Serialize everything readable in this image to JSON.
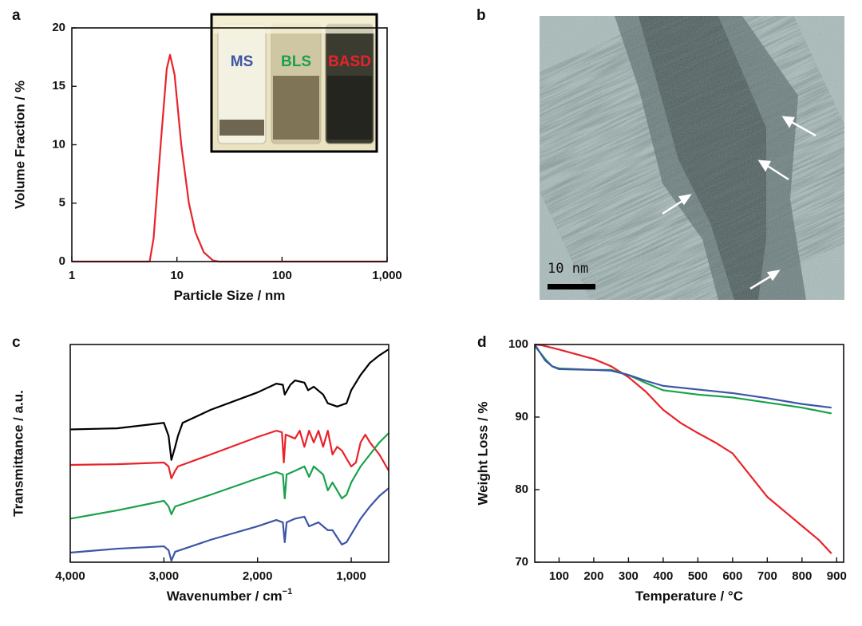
{
  "chart_data": [
    {
      "type": "line",
      "label": "a",
      "xlabel": "Particle Size / nm",
      "ylabel": "Volume Fraction / %",
      "xscale": "log",
      "xlim": [
        1,
        1000
      ],
      "xticks": [
        1,
        10,
        100,
        {
          "value": 1000,
          "label": "1,000"
        }
      ],
      "ylim": [
        0,
        20
      ],
      "yticks": [
        0,
        5,
        10,
        15,
        20
      ],
      "inset_labels": [
        "MS",
        "BLS",
        "BASD"
      ],
      "series": [
        {
          "color": "#e8232a",
          "x": [
            1,
            5.5,
            6,
            7,
            8,
            8.6,
            9.5,
            11,
            13,
            15,
            18,
            22,
            25,
            1000
          ],
          "values": [
            0,
            0,
            2,
            10,
            16.5,
            17.7,
            16,
            10,
            5,
            2.5,
            0.8,
            0.1,
            0,
            0
          ]
        }
      ]
    },
    {
      "type": "image",
      "label": "b",
      "scale_bar": "10 nm"
    },
    {
      "type": "line",
      "label": "c",
      "xlabel": "Wavenumber / cm",
      "xlabel_superscript": "−1",
      "ylabel": "Transmittance / a.u.",
      "xlim": [
        4000,
        600
      ],
      "xticks": [
        {
          "value": 4000,
          "label": "4,000"
        },
        {
          "value": 3000,
          "label": "3,000"
        },
        {
          "value": 2000,
          "label": "2,000"
        },
        {
          "value": 1000,
          "label": "1,000"
        }
      ],
      "ylim": [
        0,
        100
      ],
      "series": [
        {
          "color": "#000000",
          "x": [
            4000,
            3500,
            3000,
            2950,
            2920,
            2880,
            2850,
            2800,
            2500,
            2000,
            1800,
            1730,
            1710,
            1650,
            1600,
            1500,
            1460,
            1400,
            1300,
            1250,
            1150,
            1050,
            1000,
            900,
            800,
            700,
            600
          ],
          "values": [
            61,
            61.5,
            64,
            58,
            47,
            53,
            58,
            64,
            70,
            78,
            82,
            81.5,
            77,
            81.5,
            83.5,
            82.5,
            79,
            80.6,
            77,
            73,
            71.5,
            73,
            79,
            86,
            91.6,
            95,
            97.8
          ]
        },
        {
          "color": "#e8232a",
          "x": [
            4000,
            3500,
            3000,
            2950,
            2920,
            2880,
            2850,
            2500,
            2000,
            1800,
            1740,
            1720,
            1700,
            1600,
            1550,
            1500,
            1450,
            1400,
            1350,
            1300,
            1250,
            1200,
            1150,
            1100,
            1050,
            1000,
            950,
            900,
            850,
            800,
            700,
            650,
            600
          ],
          "values": [
            44.7,
            45,
            45.8,
            44,
            38.5,
            42,
            44,
            49.5,
            57.5,
            60.4,
            59.7,
            45.8,
            58.6,
            56.8,
            60.4,
            53,
            60.4,
            55,
            60.4,
            53,
            60.4,
            49.5,
            53,
            51.3,
            47.6,
            44,
            45.8,
            55,
            58.6,
            55,
            49.5,
            45.8,
            42
          ]
        },
        {
          "color": "#1aa14a",
          "x": [
            4000,
            3500,
            3000,
            2950,
            2920,
            2880,
            2500,
            2000,
            1800,
            1730,
            1710,
            1690,
            1600,
            1500,
            1450,
            1400,
            1300,
            1250,
            1200,
            1100,
            1050,
            1000,
            900,
            800,
            700,
            600
          ],
          "values": [
            20,
            23.8,
            28.2,
            25.6,
            22,
            25.6,
            31,
            38.5,
            41.4,
            40.3,
            29.3,
            40.3,
            42,
            44,
            39.2,
            44,
            40.3,
            33,
            36.6,
            29.3,
            31,
            36.6,
            44,
            49.5,
            55,
            59.3
          ]
        },
        {
          "color": "#3c55a5",
          "x": [
            4000,
            3500,
            3000,
            2950,
            2920,
            2880,
            2500,
            2000,
            1800,
            1730,
            1710,
            1690,
            1600,
            1500,
            1450,
            1350,
            1250,
            1200,
            1100,
            1050,
            1000,
            900,
            800,
            700,
            600
          ],
          "values": [
            4.4,
            6.2,
            7.3,
            5.5,
            0.7,
            4.8,
            10.3,
            16.5,
            19.4,
            18.3,
            9.2,
            18.3,
            20,
            20.9,
            16.5,
            18.3,
            14.7,
            14.7,
            8.1,
            9.2,
            12.8,
            20,
            25.6,
            30.4,
            34
          ]
        }
      ]
    },
    {
      "type": "line",
      "label": "d",
      "xlabel": "Temperature / °C",
      "ylabel": "Weight Loss / %",
      "xlim": [
        30,
        920
      ],
      "xticks": [
        100,
        200,
        300,
        400,
        500,
        600,
        700,
        800,
        900
      ],
      "ylim": [
        70,
        100
      ],
      "yticks": [
        70,
        80,
        90,
        100
      ],
      "series": [
        {
          "color": "#e8232a",
          "x": [
            30,
            50,
            100,
            200,
            250,
            300,
            350,
            400,
            450,
            500,
            550,
            600,
            650,
            700,
            750,
            800,
            850,
            885
          ],
          "values": [
            100,
            99.9,
            99.3,
            98,
            97,
            95.5,
            93.5,
            91,
            89.2,
            87.8,
            86.5,
            85,
            82,
            79,
            77,
            75,
            73,
            71.2
          ]
        },
        {
          "color": "#1aa14a",
          "x": [
            30,
            60,
            80,
            100,
            200,
            250,
            300,
            350,
            400,
            500,
            600,
            700,
            800,
            885
          ],
          "values": [
            99.8,
            98,
            97,
            96.7,
            96.5,
            96.5,
            95.8,
            94.7,
            93.7,
            93.1,
            92.7,
            92,
            91.3,
            90.5
          ]
        },
        {
          "color": "#3c55a5",
          "x": [
            30,
            60,
            80,
            100,
            200,
            250,
            300,
            350,
            400,
            500,
            600,
            700,
            800,
            885
          ],
          "values": [
            100,
            97.8,
            97,
            96.6,
            96.5,
            96.4,
            95.8,
            95,
            94.3,
            93.8,
            93.3,
            92.6,
            91.8,
            91.3
          ]
        }
      ]
    }
  ]
}
